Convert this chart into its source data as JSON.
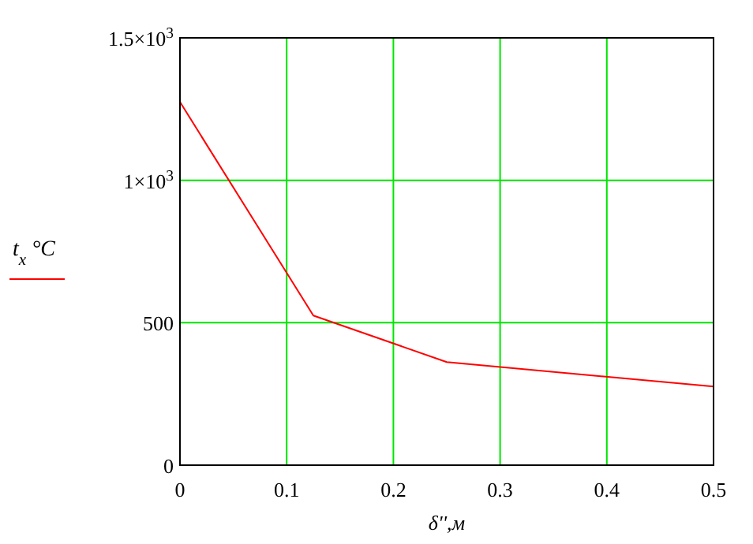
{
  "chart_data": {
    "type": "line",
    "xlabel": "δ'',м",
    "x": [
      0,
      0.125,
      0.25,
      0.5
    ],
    "series": [
      {
        "name": "t$_{x}$ °C",
        "color": "#ff0000",
        "values": [
          1275,
          525,
          362,
          276
        ]
      }
    ],
    "xlim": [
      0,
      0.5
    ],
    "xticks": [
      0,
      0.1,
      0.2,
      0.3,
      0.4,
      0.5
    ],
    "ylim": [
      0,
      1500
    ],
    "yticks": [
      0,
      500,
      {
        "value": 1000,
        "label": "1×10$^{3}$"
      },
      {
        "value": 1500,
        "label": "1.5×10$^{3}$"
      }
    ],
    "grid": true,
    "legend": "left",
    "marker": "none",
    "line_style": "solid"
  }
}
